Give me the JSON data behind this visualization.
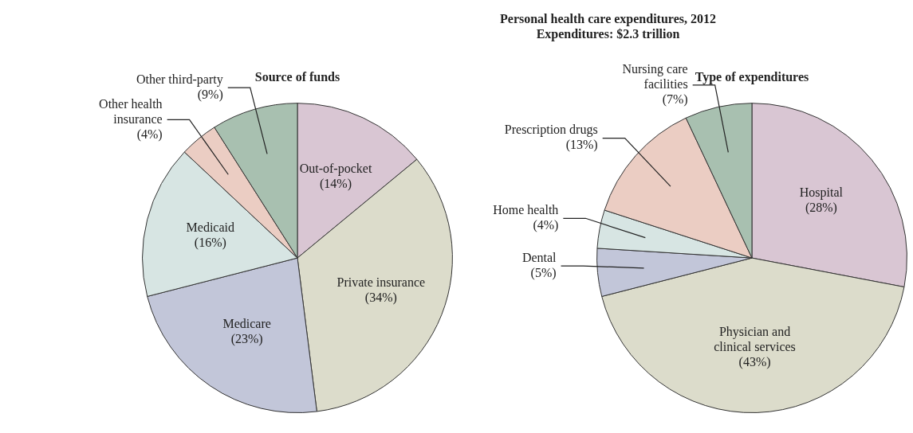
{
  "chart_data": [
    {
      "type": "other",
      "title": "Personal health care expenditures, 2012",
      "subtitle": "Expenditures: $2.3 trillion"
    },
    {
      "type": "pie",
      "title": "Source of funds",
      "categories": [
        "Out-of-pocket",
        "Private insurance",
        "Medicare",
        "Medicaid",
        "Other health insurance",
        "Other third-party"
      ],
      "values": [
        14,
        34,
        23,
        16,
        4,
        9
      ],
      "value_labels": [
        "(14%)",
        "(34%)",
        "(23%)",
        "(16%)",
        "(4%)",
        "(9%)"
      ],
      "colors": [
        "#d9c6d3",
        "#dcdccb",
        "#c2c6d9",
        "#d7e5e3",
        "#ebcdc3",
        "#a8c0b0"
      ]
    },
    {
      "type": "pie",
      "title": "Type of expenditures",
      "categories": [
        "Hospital",
        "Physician and clinical services",
        "Dental",
        "Home health",
        "Prescription drugs",
        "Nursing care facilities"
      ],
      "values": [
        28,
        43,
        5,
        4,
        13,
        7
      ],
      "value_labels": [
        "(28%)",
        "(43%)",
        "(5%)",
        "(4%)",
        "(13%)",
        "(7%)"
      ],
      "colors": [
        "#d9c6d3",
        "#dcdccb",
        "#c2c6d9",
        "#d7e5e3",
        "#ebcdc3",
        "#a8c0b0"
      ]
    }
  ]
}
